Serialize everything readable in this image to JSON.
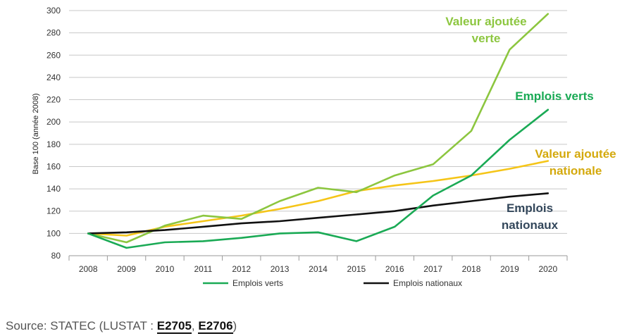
{
  "chart_data": {
    "type": "line",
    "ylabel": "Base 100 (année 2008)",
    "ylim": [
      80,
      300
    ],
    "yticks": [
      "80",
      "100",
      "120",
      "140",
      "160",
      "180",
      "200",
      "220",
      "240",
      "260",
      "280",
      "300"
    ],
    "categories": [
      "2008",
      "2009",
      "2010",
      "2011",
      "2012",
      "2013",
      "2014",
      "2015",
      "2016",
      "2017",
      "2018",
      "2019",
      "2020"
    ],
    "grid": "horizontal",
    "legend_position": "bottom",
    "series": [
      {
        "name": "Emplois verts",
        "color": "#1aaa55",
        "in_legend": true,
        "values": [
          100,
          87,
          92,
          93,
          96,
          100,
          101,
          93,
          106,
          134,
          152,
          184,
          211
        ]
      },
      {
        "name": "Emplois nationaux",
        "color": "#111111",
        "in_legend": true,
        "values": [
          100,
          101,
          103,
          106,
          109,
          111,
          114,
          117,
          120,
          125,
          129,
          133,
          136
        ]
      },
      {
        "name": "",
        "color": "#8cc63f",
        "in_legend": false,
        "values": [
          100,
          92,
          107,
          116,
          113,
          129,
          141,
          137,
          152,
          162,
          192,
          265,
          297
        ]
      },
      {
        "name": "",
        "color": "#f5c518",
        "in_legend": false,
        "values": [
          100,
          98,
          106,
          111,
          116,
          122,
          129,
          138,
          143,
          147,
          152,
          158,
          165
        ]
      }
    ],
    "annotations": [
      {
        "lines": [
          "Valeur ajoutée",
          "verte"
        ],
        "color": "#8cc63f"
      },
      {
        "lines": [
          "Emplois verts"
        ],
        "color": "#1aaa55"
      },
      {
        "lines": [
          "Valeur ajoutée",
          "nationale"
        ],
        "color": "#d4a90c"
      },
      {
        "lines": [
          "Emplois",
          "nationaux"
        ],
        "color": "#33475b"
      }
    ]
  },
  "source": {
    "prefix": "Source: STATEC (LUSTAT : ",
    "links": [
      "E2705",
      "E2706"
    ],
    "separator": ", ",
    "suffix": ")"
  }
}
